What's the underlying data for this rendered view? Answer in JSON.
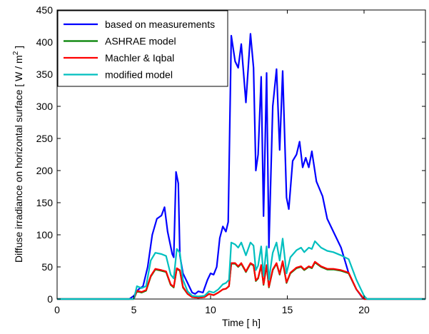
{
  "chart_data": {
    "type": "line",
    "xlabel": "Time [ h]",
    "ylabel": "Diffuse irradiance on horizontal surface [ W / m",
    "ylabel_sup": "2",
    "ylabel_suffix": " ]",
    "xlim": [
      0,
      24
    ],
    "ylim": [
      0,
      450
    ],
    "xticks": [
      0,
      5,
      10,
      15,
      20
    ],
    "yticks": [
      0,
      50,
      100,
      150,
      200,
      250,
      300,
      350,
      400,
      450
    ],
    "grid": false,
    "legend_position": "top-left",
    "series": [
      {
        "name": "based on measurements",
        "color": "#0000ff",
        "points": [
          [
            0,
            0
          ],
          [
            4.7,
            0
          ],
          [
            5.0,
            5
          ],
          [
            5.3,
            15
          ],
          [
            5.6,
            20
          ],
          [
            5.9,
            50
          ],
          [
            6.2,
            100
          ],
          [
            6.5,
            125
          ],
          [
            6.8,
            130
          ],
          [
            7.0,
            143
          ],
          [
            7.2,
            105
          ],
          [
            7.5,
            70
          ],
          [
            7.6,
            65
          ],
          [
            7.75,
            198
          ],
          [
            7.9,
            180
          ],
          [
            8.0,
            68
          ],
          [
            8.2,
            40
          ],
          [
            8.5,
            25
          ],
          [
            8.8,
            10
          ],
          [
            9.0,
            8
          ],
          [
            9.2,
            12
          ],
          [
            9.5,
            10
          ],
          [
            9.8,
            30
          ],
          [
            10.0,
            40
          ],
          [
            10.2,
            38
          ],
          [
            10.4,
            50
          ],
          [
            10.6,
            95
          ],
          [
            10.8,
            113
          ],
          [
            11.0,
            105
          ],
          [
            11.15,
            120
          ],
          [
            11.25,
            270
          ],
          [
            11.35,
            410
          ],
          [
            11.6,
            370
          ],
          [
            11.8,
            360
          ],
          [
            12.0,
            397
          ],
          [
            12.3,
            306
          ],
          [
            12.6,
            413
          ],
          [
            12.8,
            360
          ],
          [
            12.95,
            200
          ],
          [
            13.1,
            225
          ],
          [
            13.3,
            346
          ],
          [
            13.45,
            129
          ],
          [
            13.65,
            352
          ],
          [
            13.8,
            80
          ],
          [
            14.05,
            300
          ],
          [
            14.3,
            358
          ],
          [
            14.5,
            232
          ],
          [
            14.7,
            355
          ],
          [
            14.95,
            158
          ],
          [
            15.1,
            140
          ],
          [
            15.35,
            215
          ],
          [
            15.6,
            225
          ],
          [
            15.8,
            245
          ],
          [
            16.0,
            205
          ],
          [
            16.2,
            220
          ],
          [
            16.4,
            205
          ],
          [
            16.6,
            230
          ],
          [
            16.9,
            183
          ],
          [
            17.3,
            160
          ],
          [
            17.6,
            125
          ],
          [
            18.0,
            105
          ],
          [
            18.5,
            80
          ],
          [
            19.0,
            40
          ],
          [
            19.5,
            15
          ],
          [
            19.9,
            2
          ],
          [
            20.0,
            0
          ],
          [
            24,
            0
          ]
        ]
      },
      {
        "name": "ASHRAE model",
        "color": "#008000",
        "points": [
          [
            0,
            0
          ],
          [
            5.0,
            0
          ],
          [
            5.2,
            12
          ],
          [
            5.5,
            10
          ],
          [
            5.8,
            13
          ],
          [
            6.1,
            35
          ],
          [
            6.4,
            46
          ],
          [
            6.8,
            44
          ],
          [
            7.1,
            42
          ],
          [
            7.4,
            22
          ],
          [
            7.6,
            18
          ],
          [
            7.8,
            47
          ],
          [
            8.0,
            44
          ],
          [
            8.2,
            18
          ],
          [
            8.5,
            8
          ],
          [
            8.8,
            3
          ],
          [
            9.2,
            2
          ],
          [
            9.6,
            3
          ],
          [
            9.9,
            8
          ],
          [
            10.2,
            6
          ],
          [
            10.5,
            10
          ],
          [
            10.8,
            15
          ],
          [
            11.0,
            16
          ],
          [
            11.2,
            20
          ],
          [
            11.35,
            55
          ],
          [
            11.6,
            55
          ],
          [
            11.8,
            50
          ],
          [
            12.0,
            55
          ],
          [
            12.3,
            42
          ],
          [
            12.6,
            55
          ],
          [
            12.8,
            52
          ],
          [
            12.95,
            28
          ],
          [
            13.1,
            32
          ],
          [
            13.3,
            52
          ],
          [
            13.45,
            22
          ],
          [
            13.65,
            52
          ],
          [
            13.8,
            18
          ],
          [
            14.05,
            45
          ],
          [
            14.3,
            55
          ],
          [
            14.5,
            38
          ],
          [
            14.7,
            58
          ],
          [
            14.95,
            25
          ],
          [
            15.2,
            40
          ],
          [
            15.6,
            48
          ],
          [
            15.9,
            50
          ],
          [
            16.1,
            45
          ],
          [
            16.4,
            50
          ],
          [
            16.6,
            48
          ],
          [
            16.8,
            57
          ],
          [
            17.2,
            50
          ],
          [
            17.6,
            46
          ],
          [
            18.0,
            46
          ],
          [
            18.5,
            44
          ],
          [
            19.0,
            40
          ],
          [
            19.5,
            15
          ],
          [
            20.0,
            0
          ],
          [
            24,
            0
          ]
        ]
      },
      {
        "name": "Machler & Iqbal",
        "color": "#ff0000",
        "points": [
          [
            0,
            0
          ],
          [
            5.0,
            0
          ],
          [
            5.2,
            13
          ],
          [
            5.5,
            11
          ],
          [
            5.8,
            14
          ],
          [
            6.1,
            36
          ],
          [
            6.4,
            47
          ],
          [
            6.8,
            45
          ],
          [
            7.1,
            43
          ],
          [
            7.4,
            23
          ],
          [
            7.6,
            19
          ],
          [
            7.8,
            48
          ],
          [
            8.0,
            45
          ],
          [
            8.2,
            19
          ],
          [
            8.5,
            8
          ],
          [
            8.8,
            3
          ],
          [
            9.2,
            2
          ],
          [
            9.6,
            3
          ],
          [
            9.9,
            8
          ],
          [
            10.2,
            6
          ],
          [
            10.5,
            10
          ],
          [
            10.8,
            15
          ],
          [
            11.0,
            16
          ],
          [
            11.2,
            20
          ],
          [
            11.35,
            56
          ],
          [
            11.6,
            56
          ],
          [
            11.8,
            51
          ],
          [
            12.0,
            56
          ],
          [
            12.3,
            43
          ],
          [
            12.6,
            56
          ],
          [
            12.8,
            53
          ],
          [
            12.95,
            29
          ],
          [
            13.1,
            33
          ],
          [
            13.3,
            53
          ],
          [
            13.45,
            23
          ],
          [
            13.65,
            53
          ],
          [
            13.8,
            19
          ],
          [
            14.05,
            46
          ],
          [
            14.3,
            56
          ],
          [
            14.5,
            39
          ],
          [
            14.7,
            59
          ],
          [
            14.95,
            26
          ],
          [
            15.2,
            41
          ],
          [
            15.6,
            49
          ],
          [
            15.9,
            51
          ],
          [
            16.1,
            46
          ],
          [
            16.4,
            51
          ],
          [
            16.6,
            49
          ],
          [
            16.8,
            58
          ],
          [
            17.2,
            51
          ],
          [
            17.6,
            47
          ],
          [
            18.0,
            47
          ],
          [
            18.5,
            45
          ],
          [
            19.0,
            41
          ],
          [
            19.5,
            15
          ],
          [
            20.0,
            0
          ],
          [
            24,
            0
          ]
        ]
      },
      {
        "name": "modified model",
        "color": "#00bfbf",
        "points": [
          [
            0,
            0
          ],
          [
            5.0,
            0
          ],
          [
            5.2,
            20
          ],
          [
            5.5,
            17
          ],
          [
            5.8,
            20
          ],
          [
            6.1,
            60
          ],
          [
            6.4,
            72
          ],
          [
            6.8,
            70
          ],
          [
            7.1,
            67
          ],
          [
            7.4,
            38
          ],
          [
            7.6,
            32
          ],
          [
            7.8,
            78
          ],
          [
            8.0,
            72
          ],
          [
            8.2,
            30
          ],
          [
            8.5,
            12
          ],
          [
            8.8,
            5
          ],
          [
            9.2,
            4
          ],
          [
            9.6,
            5
          ],
          [
            9.9,
            12
          ],
          [
            10.2,
            10
          ],
          [
            10.5,
            15
          ],
          [
            10.8,
            23
          ],
          [
            11.0,
            25
          ],
          [
            11.2,
            30
          ],
          [
            11.35,
            88
          ],
          [
            11.6,
            85
          ],
          [
            11.8,
            80
          ],
          [
            12.0,
            88
          ],
          [
            12.3,
            68
          ],
          [
            12.6,
            88
          ],
          [
            12.8,
            83
          ],
          [
            12.95,
            45
          ],
          [
            13.1,
            52
          ],
          [
            13.3,
            82
          ],
          [
            13.45,
            36
          ],
          [
            13.65,
            82
          ],
          [
            13.8,
            30
          ],
          [
            14.05,
            72
          ],
          [
            14.3,
            88
          ],
          [
            14.5,
            60
          ],
          [
            14.7,
            94
          ],
          [
            14.95,
            40
          ],
          [
            15.2,
            65
          ],
          [
            15.6,
            76
          ],
          [
            15.9,
            80
          ],
          [
            16.1,
            73
          ],
          [
            16.4,
            80
          ],
          [
            16.6,
            78
          ],
          [
            16.8,
            90
          ],
          [
            17.2,
            80
          ],
          [
            17.6,
            75
          ],
          [
            18.0,
            73
          ],
          [
            18.5,
            68
          ],
          [
            19.0,
            62
          ],
          [
            19.5,
            30
          ],
          [
            20.0,
            5
          ],
          [
            20.2,
            0
          ],
          [
            24,
            0
          ]
        ]
      }
    ]
  }
}
